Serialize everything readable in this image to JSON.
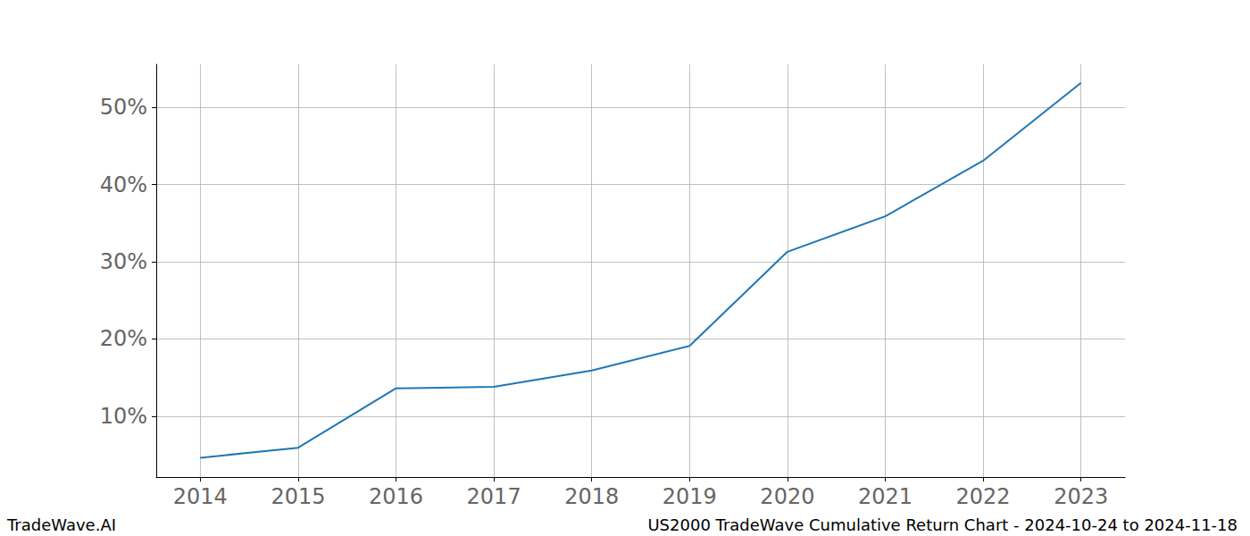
{
  "chart_data": {
    "type": "line",
    "title": "US2000 TradeWave Cumulative Return Chart - 2024-10-24 to 2024-11-18",
    "annotations": [
      "TradeWave.AI"
    ],
    "x": [
      2014,
      2015,
      2016,
      2017,
      2018,
      2019,
      2020,
      2021,
      2022,
      2023
    ],
    "values": [
      4.6,
      5.9,
      13.6,
      13.8,
      15.9,
      19.1,
      31.3,
      35.9,
      43.1,
      53.2
    ],
    "color": "#1f77b4",
    "xlim": [
      2013.55,
      2023.45
    ],
    "xticks": [
      2014,
      2015,
      2016,
      2017,
      2018,
      2019,
      2020,
      2021,
      2022,
      2023
    ],
    "ylim": [
      2.1,
      55.6
    ],
    "yticks": [
      {
        "value": 10,
        "label": "10%"
      },
      {
        "value": 20,
        "label": "20%"
      },
      {
        "value": 30,
        "label": "30%"
      },
      {
        "value": 40,
        "label": "40%"
      },
      {
        "value": 50,
        "label": "50%"
      }
    ],
    "grid": true
  }
}
